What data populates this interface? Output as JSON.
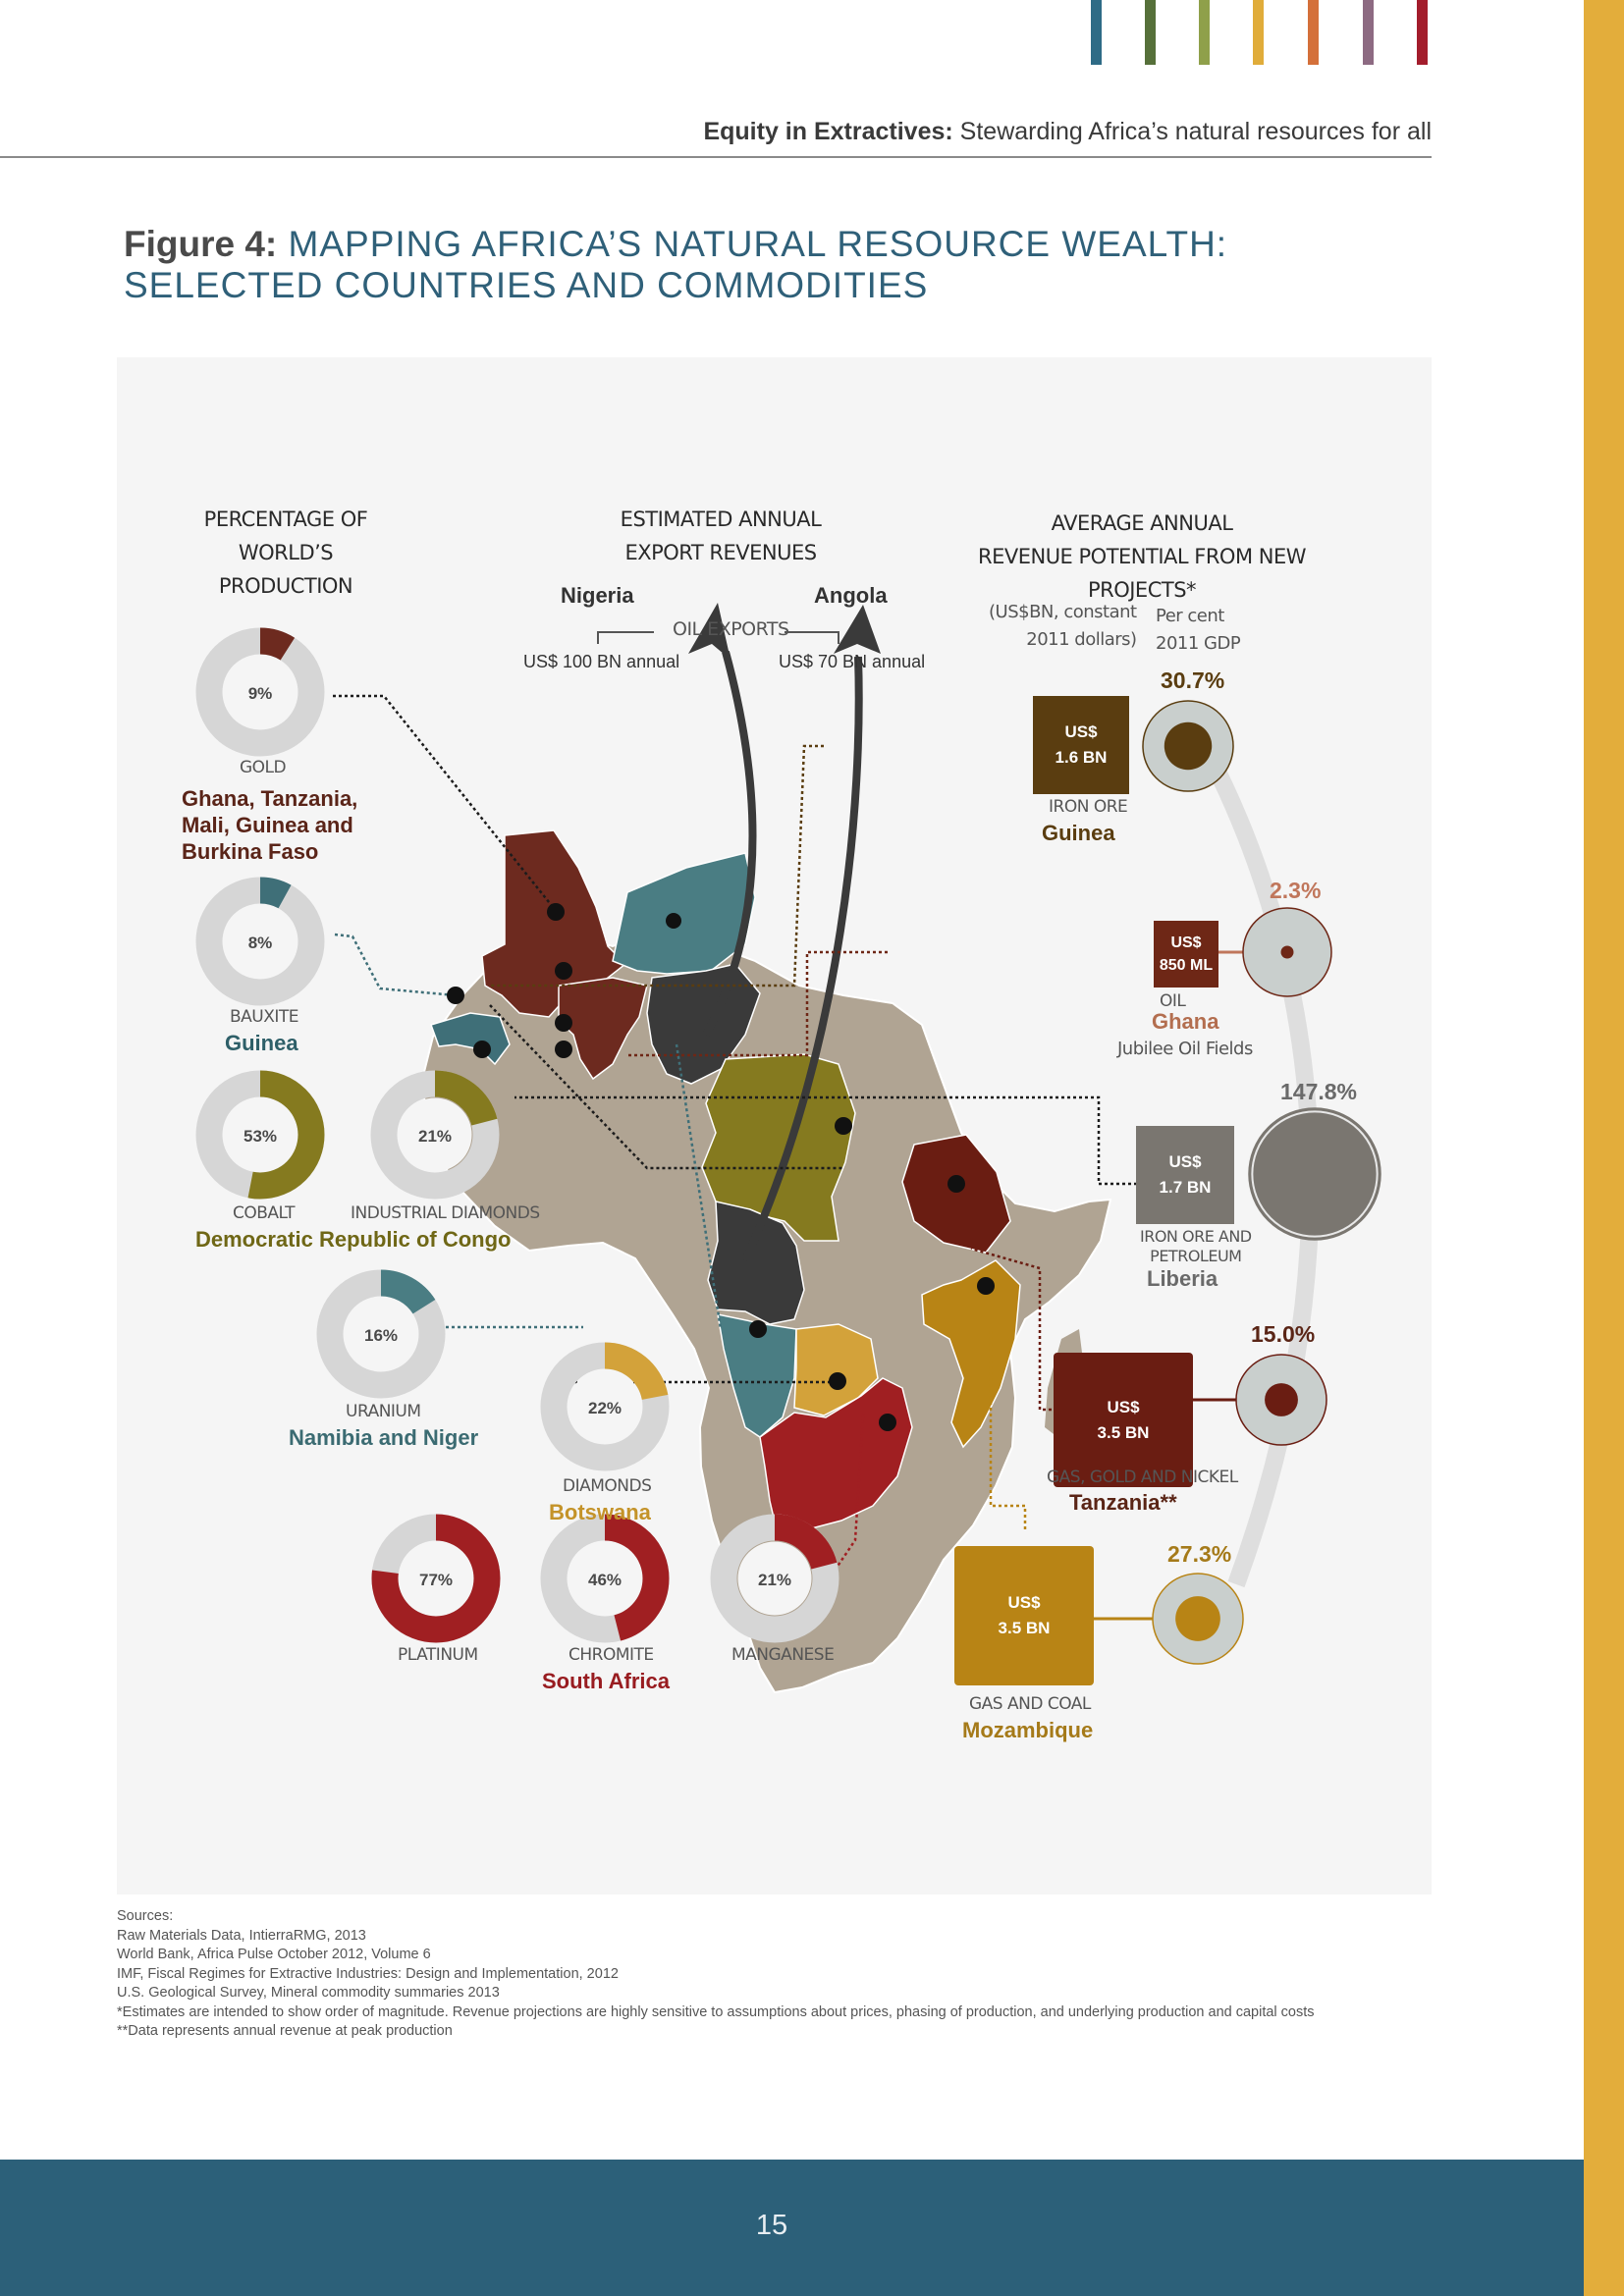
{
  "header": {
    "running_bold": "Equity in Extractives:",
    "running_rest": "Stewarding Africa’s natural resources for all",
    "stripe_colors": [
      "#2e6b86",
      "#56703a",
      "#8fa04a",
      "#e0ac3a",
      "#d4703a",
      "#8d6a82",
      "#a31d2c"
    ]
  },
  "figure": {
    "label": "Figure 4:",
    "title": "MAPPING AFRICA’S NATURAL RESOURCE WEALTH: SELECTED COUNTRIES AND COMMODITIES"
  },
  "columns": {
    "production_line1": "PERCENTAGE OF",
    "production_line2": "WORLD’S PRODUCTION",
    "export_line1": "ESTIMATED ANNUAL",
    "export_line2": "EXPORT REVENUES",
    "revenue_line1": "AVERAGE ANNUAL",
    "revenue_line2": "REVENUE POTENTIAL FROM NEW PROJECTS*",
    "unit_line1": "(US$BN, constant",
    "unit_line2": "2011 dollars)",
    "gdp_line1": "Per cent",
    "gdp_line2": "2011 GDP"
  },
  "oil_exports": {
    "label": "OIL EXPORTS",
    "nigeria": "Nigeria",
    "nigeria_value": "US$ 100 BN annual",
    "angola": "Angola",
    "angola_value": "US$ 70 BN annual"
  },
  "production": [
    {
      "id": "gold",
      "percent": 9,
      "label": "9%",
      "commodity": "GOLD",
      "country_lines": [
        "Ghana, Tanzania,",
        "Mali, Guinea and",
        "Burkina Faso"
      ],
      "color": "#6d2a1f"
    },
    {
      "id": "bauxite",
      "percent": 8,
      "label": "8%",
      "commodity": "BAUXITE",
      "country_lines": [
        "Guinea"
      ],
      "color": "#3f6f78"
    },
    {
      "id": "cobalt",
      "percent": 53,
      "label": "53%",
      "commodity": "COBALT",
      "country_lines": [],
      "color": "#857a1f"
    },
    {
      "id": "industrial-diamonds",
      "percent": 21,
      "label": "21%",
      "commodity": "INDUSTRIAL DIAMONDS",
      "country_lines": [],
      "color": "#857a1f"
    },
    {
      "id": "uranium",
      "percent": 16,
      "label": "16%",
      "commodity": "URANIUM",
      "country_lines": [
        "Namibia and Niger"
      ],
      "color": "#4a7d83"
    },
    {
      "id": "diamonds",
      "percent": 22,
      "label": "22%",
      "commodity": "DIAMONDS",
      "country_lines": [
        "Botswana"
      ],
      "color": "#d3a23a"
    },
    {
      "id": "platinum",
      "percent": 77,
      "label": "77%",
      "commodity": "PLATINUM",
      "country_lines": [],
      "color": "#a01f22"
    },
    {
      "id": "chromite",
      "percent": 46,
      "label": "46%",
      "commodity": "CHROMITE",
      "country_lines": [
        "South Africa"
      ],
      "color": "#a01f22"
    },
    {
      "id": "manganese",
      "percent": 21,
      "label": "21%",
      "commodity": "MANGANESE",
      "country_lines": [],
      "color": "#a01f22"
    }
  ],
  "drc_country": "Democratic Republic of Congo",
  "projects": [
    {
      "id": "guinea",
      "box_line1": "US$",
      "box_line2": "1.6 BN",
      "gdp_pct": "30.7%",
      "gdp_value": 30.7,
      "commodity": "IRON ORE",
      "country": "Guinea",
      "extra": "",
      "box_color": "#5a3d10",
      "pct_color": "#5a3d10"
    },
    {
      "id": "ghana",
      "box_line1": "US$",
      "box_line2": "850 ML",
      "gdp_pct": "2.3%",
      "gdp_value": 2.3,
      "commodity": "OIL",
      "country": "Ghana",
      "extra": "Jubilee Oil Fields",
      "box_color": "#6e2716",
      "pct_color": "#c0765b"
    },
    {
      "id": "liberia",
      "box_line1": "US$",
      "box_line2": "1.7 BN",
      "gdp_pct": "147.8%",
      "gdp_value": 147.8,
      "commodity_lines": [
        "IRON ORE AND",
        "PETROLEUM"
      ],
      "country": "Liberia",
      "extra": "",
      "box_color": "#7a7670",
      "pct_color": "#6a6a6a"
    },
    {
      "id": "tanzania",
      "box_line1": "US$",
      "box_line2": "3.5 BN",
      "gdp_pct": "15.0%",
      "gdp_value": 15.0,
      "commodity": "GAS, GOLD AND NICKEL",
      "country": "Tanzania**",
      "extra": "",
      "box_color": "#6a1d12",
      "pct_color": "#5a2516"
    },
    {
      "id": "mozambique",
      "box_line1": "US$",
      "box_line2": "3.5 BN",
      "gdp_pct": "27.3%",
      "gdp_value": 27.3,
      "commodity": "GAS AND COAL",
      "country": "Mozambique",
      "extra": "",
      "box_color": "#b88415",
      "pct_color": "#a57a19"
    }
  ],
  "sources": [
    "Sources:",
    "Raw Materials Data, IntierraRMG, 2013",
    "World Bank, Africa Pulse October 2012, Volume 6",
    "IMF, Fiscal Regimes for Extractive Industries: Design and Implementation, 2012",
    "U.S. Geological Survey, Mineral commodity summaries 2013",
    "*Estimates are intended to show order of magnitude. Revenue projections are highly sensitive to assumptions about prices, phasing of production, and underlying production and capital costs",
    "**Data represents annual revenue at peak production"
  ],
  "page_number": "15"
}
